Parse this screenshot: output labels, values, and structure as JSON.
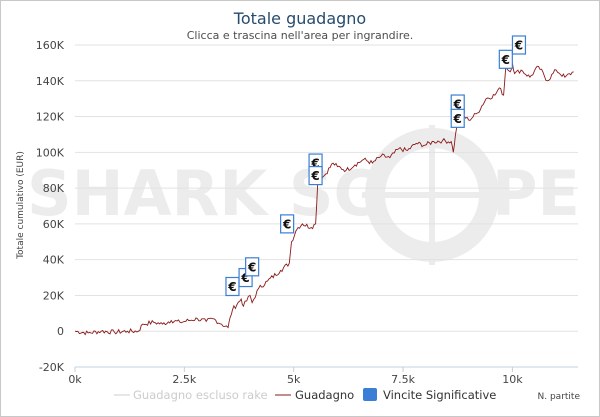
{
  "watermark": {
    "left": "SHARK SC",
    "right": "PE"
  },
  "chart_data": {
    "type": "line",
    "title": "Totale guadagno",
    "subtitle": "Clicca e trascina nell'area per ingrandire.",
    "ylabel": "Totale cumulativo (EUR)",
    "xlabel": "N. partite",
    "xlim": [
      0,
      11500
    ],
    "ylim": [
      -20000,
      160000
    ],
    "x_ticks": [
      0,
      2500,
      5000,
      7500,
      10000
    ],
    "x_tick_labels": [
      "0k",
      "2.5k",
      "5k",
      "7.5k",
      "10k"
    ],
    "y_ticks": [
      -20000,
      0,
      20000,
      40000,
      60000,
      80000,
      100000,
      120000,
      140000,
      160000
    ],
    "y_tick_labels": [
      "-20K",
      "0",
      "20K",
      "40K",
      "60K",
      "80K",
      "100K",
      "120K",
      "140K",
      "160K"
    ],
    "grid": "horizontal",
    "legend_position": "bottom",
    "series": [
      {
        "name": "Guadagno escluso rake",
        "color": "#cccccc",
        "visible": false,
        "x": [],
        "y": []
      },
      {
        "name": "Guadagno",
        "color": "#8b1a1a",
        "visible": true,
        "x": [
          0,
          300,
          600,
          900,
          1200,
          1450,
          1550,
          1800,
          2000,
          2200,
          2400,
          2600,
          2800,
          3000,
          3150,
          3350,
          3500,
          3550,
          3600,
          3800,
          3850,
          4000,
          4050,
          4200,
          4400,
          4700,
          4900,
          4950,
          5050,
          5100,
          5200,
          5400,
          5500,
          5550,
          5700,
          5900,
          6000,
          6200,
          6400,
          6600,
          6800,
          7000,
          7200,
          7400,
          7600,
          7800,
          8000,
          8200,
          8400,
          8600,
          8650,
          8700,
          8750,
          8900,
          9000,
          9200,
          9400,
          9600,
          9700,
          9800,
          9850,
          9950,
          10000,
          10050,
          10200,
          10400,
          10600,
          10800,
          11000,
          11200,
          11400
        ],
        "y": [
          0,
          -1000,
          0,
          -500,
          0,
          0,
          4000,
          5000,
          4000,
          6000,
          5000,
          6000,
          7000,
          5500,
          7000,
          4000,
          2000,
          8000,
          12000,
          18000,
          14000,
          20000,
          16000,
          24000,
          28000,
          34000,
          38000,
          50000,
          56000,
          58000,
          60000,
          58000,
          60000,
          84000,
          87000,
          94000,
          92000,
          90000,
          93000,
          96000,
          94000,
          98000,
          97000,
          102000,
          101000,
          105000,
          104000,
          106000,
          106500,
          106000,
          100000,
          110000,
          116000,
          120000,
          118000,
          122000,
          130000,
          132000,
          136000,
          132000,
          148000,
          145000,
          150000,
          144000,
          146000,
          142000,
          148000,
          140000,
          146000,
          142000,
          145000
        ]
      }
    ],
    "significant_wins": {
      "name": "Vincite Significative",
      "color": "#3a7fd5",
      "glyph": "€",
      "points": [
        {
          "x": 3600,
          "y": 25000
        },
        {
          "x": 3900,
          "y": 30000
        },
        {
          "x": 4050,
          "y": 36000
        },
        {
          "x": 4850,
          "y": 60000
        },
        {
          "x": 5500,
          "y": 94000
        },
        {
          "x": 5500,
          "y": 87000
        },
        {
          "x": 8750,
          "y": 127000
        },
        {
          "x": 8750,
          "y": 119000
        },
        {
          "x": 9850,
          "y": 152000
        },
        {
          "x": 10150,
          "y": 160000
        }
      ]
    }
  }
}
